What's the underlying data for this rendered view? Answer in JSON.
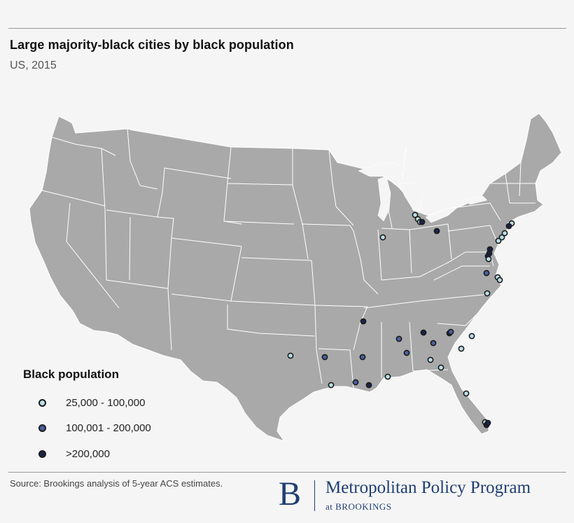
{
  "header": {
    "title": "Large majority-black cities by black population",
    "subtitle": "US, 2015"
  },
  "legend": {
    "title": "Black population",
    "items": [
      {
        "label": "25,000 - 100,000",
        "color": "#b9dfe8"
      },
      {
        "label": "100,001 - 200,000",
        "color": "#4a5f9e"
      },
      {
        "label": ">200,000",
        "color": "#1b2347"
      }
    ]
  },
  "map": {
    "land_color": "#a9a9a9",
    "border_color": "#ffffff"
  },
  "footer": {
    "source": "Source: Brookings analysis of 5-year ACS estimates.",
    "logo_letter": "B",
    "logo_name": "Metropolitan Policy Program",
    "logo_sub": "at BROOKINGS"
  }
}
